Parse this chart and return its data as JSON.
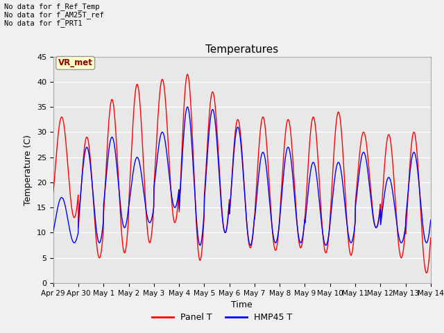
{
  "title": "Temperatures",
  "xlabel": "Time",
  "ylabel": "Temperature (C)",
  "ylim": [
    0,
    45
  ],
  "background_color": "#f0f0f0",
  "plot_bg_color": "#e8e8e8",
  "grid_color": "white",
  "annotations": [
    "No data for f_Ref_Temp",
    "No data for f_AM25T_ref",
    "No data for f_PRT1"
  ],
  "legend_entries": [
    "Panel T",
    "HMP45 T"
  ],
  "vr_met_label": "VR_met",
  "panel_color": "red",
  "hmp_color": "blue",
  "panel_day_maxes": [
    33,
    29,
    36.5,
    39.5,
    40.5,
    41.5,
    38,
    32.5,
    33,
    32.5,
    33,
    34,
    30,
    29.5,
    30
  ],
  "panel_day_mins": [
    13,
    5,
    6,
    8,
    12,
    4.5,
    10,
    7,
    6.5,
    7,
    6,
    5.5,
    11,
    5,
    2
  ],
  "hmp_day_maxes": [
    17,
    27,
    29,
    25,
    30,
    35,
    34.5,
    31,
    26,
    27,
    24,
    24,
    26,
    21,
    26
  ],
  "hmp_day_mins": [
    8,
    8,
    11,
    12,
    15,
    7.5,
    10,
    7.5,
    8,
    8,
    7.5,
    8,
    11,
    8,
    8
  ],
  "tick_labels": [
    "Apr 29",
    "Apr 30",
    "May 1",
    "May 2",
    "May 3",
    "May 4",
    "May 5",
    "May 6",
    "May 7",
    "May 8",
    "May 9",
    "May 10",
    "May 11",
    "May 12",
    "May 13",
    "May 14"
  ],
  "n_days": 15
}
